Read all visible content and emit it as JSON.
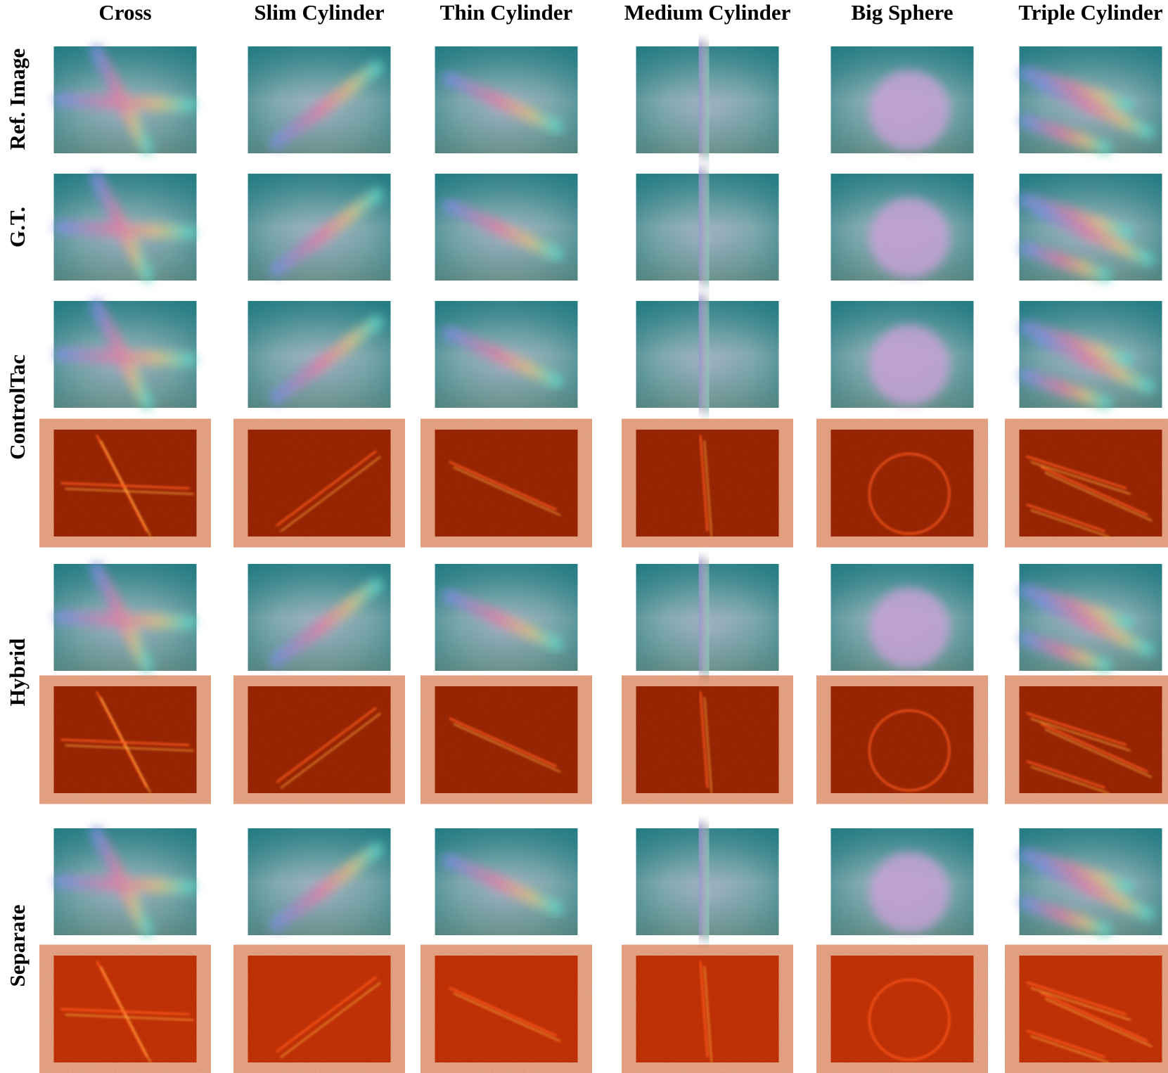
{
  "columns": [
    "Cross",
    "Slim Cylinder",
    "Thin Cylinder",
    "Medium Cylinder",
    "Big Sphere",
    "Triple Cylinder"
  ],
  "row_labels": [
    "Ref. Image",
    "G.T.",
    "ControlTac",
    "Hybrid",
    "Separate"
  ]
}
